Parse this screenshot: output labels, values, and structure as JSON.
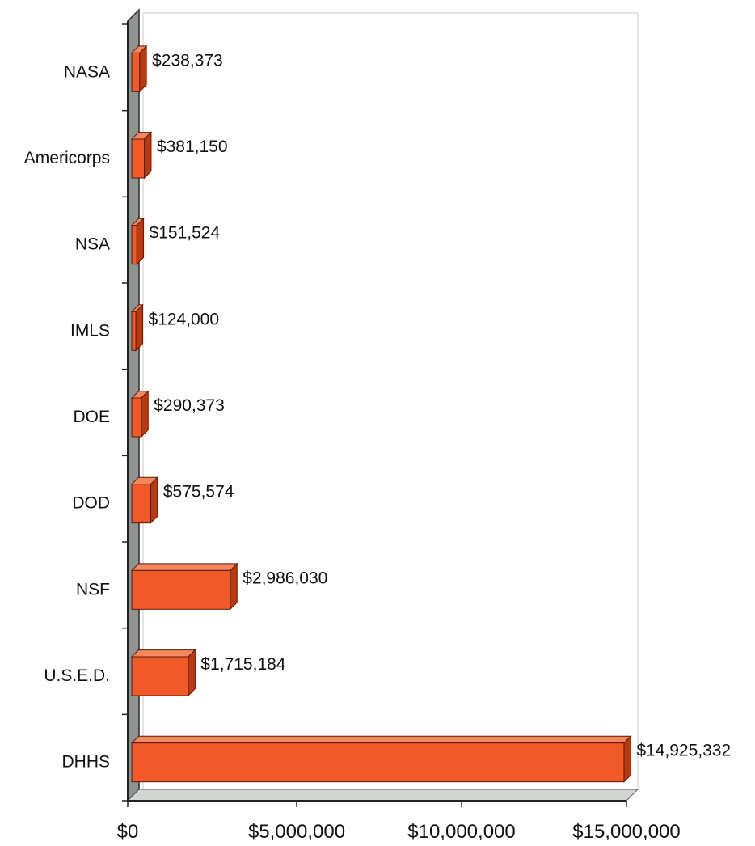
{
  "chart_data": {
    "type": "bar",
    "orientation": "horizontal",
    "style": "3d",
    "categories": [
      "NASA",
      "Americorps",
      "NSA",
      "IMLS",
      "DOE",
      "DOD",
      "NSF",
      "U.S.E.D.",
      "DHHS"
    ],
    "values": [
      238373,
      381150,
      151524,
      124000,
      290373,
      575574,
      2986030,
      1715184,
      14925332
    ],
    "data_labels": [
      "$238,373",
      "$381,150",
      "$151,524",
      "$124,000",
      "$290,373",
      "$575,574",
      "$2,986,030",
      "$1,715,184",
      "$14,925,332"
    ],
    "x_ticks": [
      0,
      5000000,
      10000000,
      15000000
    ],
    "x_tick_labels": [
      "$0",
      "$5,000,000",
      "$10,000,000",
      "$15,000,000"
    ],
    "xlim": [
      0,
      15000000
    ],
    "title": "",
    "xlabel": "",
    "ylabel": "",
    "grid": false,
    "legend": "none",
    "colors": {
      "bar_front": "#f05a28",
      "bar_top": "#f5875f",
      "bar_side": "#b83a12",
      "bar_edge": "#5a1a08",
      "wall_left": "#8f9490",
      "floor": "#d2d7d3",
      "back_wall": "#ffffff"
    }
  }
}
